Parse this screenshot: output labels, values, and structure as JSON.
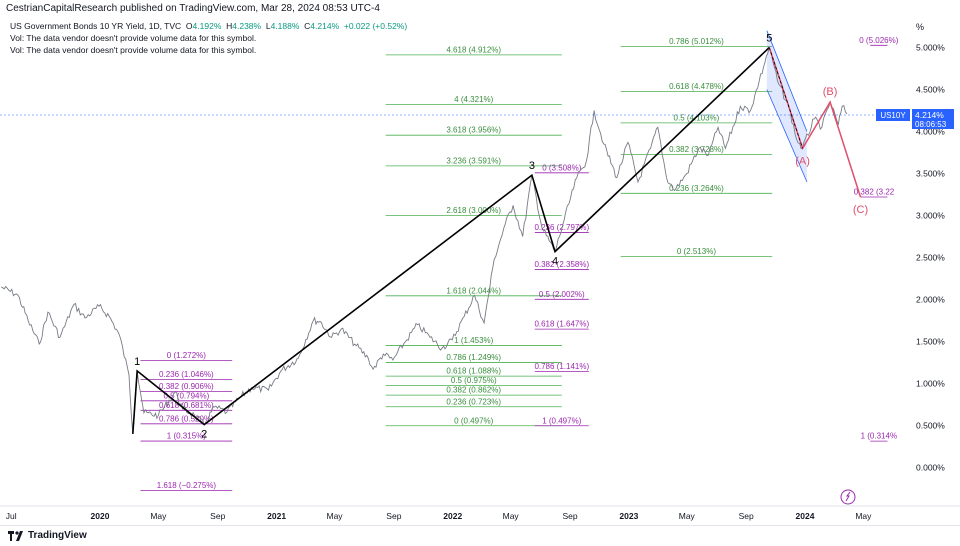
{
  "header": {
    "published": "CestrianCapitalResearch published on TradingView.com, Mar 28, 2024 08:53 UTC-4"
  },
  "legend": {
    "symbol": "US Government Bonds 10 YR Yield, 1D, TVC",
    "o_label": "O",
    "o_value": "4.192%",
    "h_label": "H",
    "h_value": "4.238%",
    "l_label": "L",
    "l_value": "4.188%",
    "c_label": "C",
    "c_value": "4.214%",
    "change": "+0.022 (+0.52%)",
    "vol1": "Vol: The data vendor doesn't provide volume data for this symbol.",
    "vol2": "Vol: The data vendor doesn't provide volume data for this symbol."
  },
  "price_tag": {
    "symbol": "US10Y",
    "price": "4.214%",
    "countdown": "08:06:53"
  },
  "scale_button": "%",
  "footer": {
    "brand": "TradingView"
  },
  "colors": {
    "price_line": "#787b86",
    "fib_green": "#4caf50",
    "fib_text_green": "#388e3c",
    "fib_text_purple": "#9c27b0",
    "wave_black": "#000000",
    "abc_red": "#e04e6b",
    "channel_blue": "#2962ff",
    "tag_blue": "#2962ff"
  },
  "chart_data": {
    "type": "line",
    "title": "US Government Bonds 10 YR Yield, 1D, TVC",
    "y_axis_ticks": [
      "5.000%",
      "4.500%",
      "4.000%",
      "3.500%",
      "3.000%",
      "2.500%",
      "2.000%",
      "1.500%",
      "1.000%",
      "0.500%",
      "0.000%"
    ],
    "ylim": [
      -0.5,
      5.4
    ],
    "x_axis_ticks": [
      "Jul",
      "2020",
      "May",
      "Sep",
      "2021",
      "May",
      "Sep",
      "2022",
      "May",
      "Sep",
      "2023",
      "May",
      "Sep",
      "2024",
      "May"
    ],
    "x_tick_dates": [
      "2019-07-01",
      "2020-01-01",
      "2020-05-01",
      "2020-09-01",
      "2021-01-01",
      "2021-05-01",
      "2021-09-01",
      "2022-01-01",
      "2022-05-01",
      "2022-09-01",
      "2023-01-01",
      "2023-05-01",
      "2023-09-01",
      "2024-01-01",
      "2024-05-01"
    ],
    "series": [
      {
        "values_points": [
          [
            "2019-06-10",
            2.15
          ],
          [
            "2019-07-15",
            2.05
          ],
          [
            "2019-08-05",
            1.75
          ],
          [
            "2019-08-28",
            1.47
          ],
          [
            "2019-09-15",
            1.85
          ],
          [
            "2019-10-10",
            1.55
          ],
          [
            "2019-11-08",
            1.94
          ],
          [
            "2019-12-01",
            1.78
          ],
          [
            "2019-12-30",
            1.92
          ],
          [
            "2020-01-20",
            1.8
          ],
          [
            "2020-02-10",
            1.58
          ],
          [
            "2020-03-01",
            1.1
          ],
          [
            "2020-03-09",
            0.4
          ],
          [
            "2020-03-18",
            1.15
          ],
          [
            "2020-04-01",
            0.65
          ],
          [
            "2020-05-01",
            0.62
          ],
          [
            "2020-06-05",
            0.9
          ],
          [
            "2020-06-20",
            0.7
          ],
          [
            "2020-07-15",
            0.62
          ],
          [
            "2020-08-04",
            0.51
          ],
          [
            "2020-08-25",
            0.72
          ],
          [
            "2020-09-20",
            0.66
          ],
          [
            "2020-10-20",
            0.85
          ],
          [
            "2020-11-10",
            0.95
          ],
          [
            "2020-12-15",
            0.92
          ],
          [
            "2021-01-10",
            1.15
          ],
          [
            "2021-02-15",
            1.3
          ],
          [
            "2021-03-18",
            1.75
          ],
          [
            "2021-04-01",
            1.74
          ],
          [
            "2021-04-25",
            1.55
          ],
          [
            "2021-05-15",
            1.65
          ],
          [
            "2021-06-15",
            1.45
          ],
          [
            "2021-07-10",
            1.3
          ],
          [
            "2021-07-20",
            1.17
          ],
          [
            "2021-08-10",
            1.35
          ],
          [
            "2021-08-30",
            1.28
          ],
          [
            "2021-09-25",
            1.5
          ],
          [
            "2021-10-20",
            1.7
          ],
          [
            "2021-11-15",
            1.55
          ],
          [
            "2021-12-10",
            1.42
          ],
          [
            "2021-12-31",
            1.52
          ],
          [
            "2022-01-25",
            1.8
          ],
          [
            "2022-02-15",
            2.05
          ],
          [
            "2022-03-07",
            1.72
          ],
          [
            "2022-03-28",
            2.48
          ],
          [
            "2022-04-20",
            2.9
          ],
          [
            "2022-05-06",
            3.12
          ],
          [
            "2022-05-26",
            2.75
          ],
          [
            "2022-06-14",
            3.48
          ],
          [
            "2022-07-05",
            2.85
          ],
          [
            "2022-08-01",
            2.57
          ],
          [
            "2022-08-20",
            2.95
          ],
          [
            "2022-09-15",
            3.45
          ],
          [
            "2022-10-05",
            3.65
          ],
          [
            "2022-10-21",
            4.25
          ],
          [
            "2022-11-10",
            3.85
          ],
          [
            "2022-12-07",
            3.45
          ],
          [
            "2022-12-30",
            3.87
          ],
          [
            "2023-01-20",
            3.4
          ],
          [
            "2023-02-15",
            3.8
          ],
          [
            "2023-03-02",
            4.05
          ],
          [
            "2023-03-20",
            3.45
          ],
          [
            "2023-04-06",
            3.3
          ],
          [
            "2023-05-01",
            3.5
          ],
          [
            "2023-05-26",
            3.8
          ],
          [
            "2023-06-15",
            3.72
          ],
          [
            "2023-07-05",
            4.05
          ],
          [
            "2023-07-20",
            3.8
          ],
          [
            "2023-08-20",
            4.3
          ],
          [
            "2023-09-10",
            4.25
          ],
          [
            "2023-09-28",
            4.6
          ],
          [
            "2023-10-19",
            5.0
          ],
          [
            "2023-11-05",
            4.6
          ],
          [
            "2023-11-28",
            4.3
          ],
          [
            "2023-12-15",
            3.9
          ],
          [
            "2023-12-27",
            3.8
          ],
          [
            "2024-01-20",
            4.15
          ],
          [
            "2024-02-05",
            4.05
          ],
          [
            "2024-02-22",
            4.35
          ],
          [
            "2024-03-10",
            4.08
          ],
          [
            "2024-03-18",
            4.3
          ],
          [
            "2024-03-28",
            4.21
          ]
        ]
      }
    ],
    "elliott_waves": [
      {
        "label": "1",
        "date": "2020-03-18",
        "value": 1.15
      },
      {
        "label": "2",
        "date": "2020-08-04",
        "value": 0.51
      },
      {
        "label": "3",
        "date": "2022-06-14",
        "value": 3.48
      },
      {
        "label": "4",
        "date": "2022-08-01",
        "value": 2.57
      },
      {
        "label": "5",
        "date": "2023-10-19",
        "value": 5.0
      }
    ],
    "wave_start": {
      "date": "2020-03-09",
      "value": 0.4
    },
    "corrective_waves": [
      {
        "label": "(A)",
        "date": "2023-12-27",
        "value": 3.8
      },
      {
        "label": "(B)",
        "date": "2024-02-22",
        "value": 4.35
      },
      {
        "label": "(C)",
        "date": "2024-04-25",
        "value": 3.22
      }
    ],
    "fib_levels": [
      {
        "text": "0 (1.272%)",
        "value": 1.272,
        "from": "2020-03-25",
        "to": "2020-10-01",
        "color": "purple"
      },
      {
        "text": "0.236 (1.046%)",
        "value": 1.046,
        "from": "2020-03-25",
        "to": "2020-10-01",
        "color": "purple"
      },
      {
        "text": "0.382 (0.906%)",
        "value": 0.906,
        "from": "2020-03-25",
        "to": "2020-10-01",
        "color": "purple"
      },
      {
        "text": "0.5 (0.794%)",
        "value": 0.794,
        "from": "2020-03-25",
        "to": "2020-10-01",
        "color": "purple"
      },
      {
        "text": "0.618 (0.681%)",
        "value": 0.681,
        "from": "2020-03-25",
        "to": "2020-10-01",
        "color": "purple"
      },
      {
        "text": "0.786 (0.520%)",
        "value": 0.52,
        "from": "2020-03-25",
        "to": "2020-10-01",
        "color": "purple"
      },
      {
        "text": "1 (0.315%)",
        "value": 0.315,
        "from": "2020-03-25",
        "to": "2020-10-01",
        "color": "purple"
      },
      {
        "text": "1.618 (−0.275%)",
        "value": -0.275,
        "from": "2020-03-25",
        "to": "2020-10-01",
        "color": "purple"
      },
      {
        "text": "4.618 (4.912%)",
        "value": 4.912,
        "from": "2021-08-15",
        "to": "2022-08-15",
        "color": "green"
      },
      {
        "text": "4 (4.321%)",
        "value": 4.321,
        "from": "2021-08-15",
        "to": "2022-08-15",
        "color": "green"
      },
      {
        "text": "3.618 (3.956%)",
        "value": 3.956,
        "from": "2021-08-15",
        "to": "2022-08-15",
        "color": "green"
      },
      {
        "text": "3.236 (3.591%)",
        "value": 3.591,
        "from": "2021-08-15",
        "to": "2022-08-15",
        "color": "green"
      },
      {
        "text": "2.618 (3.000%)",
        "value": 3.0,
        "from": "2021-08-15",
        "to": "2022-08-15",
        "color": "green"
      },
      {
        "text": "1.618 (2.044%)",
        "value": 2.044,
        "from": "2021-08-15",
        "to": "2022-08-15",
        "color": "green"
      },
      {
        "text": "1 (1.453%)",
        "value": 1.453,
        "from": "2021-08-15",
        "to": "2022-08-15",
        "color": "green"
      },
      {
        "text": "0.786 (1.249%)",
        "value": 1.249,
        "from": "2021-08-15",
        "to": "2022-08-15",
        "color": "green"
      },
      {
        "text": "0.618 (1.088%)",
        "value": 1.088,
        "from": "2021-08-15",
        "to": "2022-08-15",
        "color": "green"
      },
      {
        "text": "0.5 (0.975%)",
        "value": 0.975,
        "from": "2021-08-15",
        "to": "2022-08-15",
        "color": "green"
      },
      {
        "text": "0.382 (0.862%)",
        "value": 0.862,
        "from": "2021-08-15",
        "to": "2022-08-15",
        "color": "green"
      },
      {
        "text": "0.236 (0.723%)",
        "value": 0.723,
        "from": "2021-08-15",
        "to": "2022-08-15",
        "color": "green"
      },
      {
        "text": "0 (0.497%)",
        "value": 0.497,
        "from": "2021-08-15",
        "to": "2022-08-15",
        "color": "green"
      },
      {
        "text": "0 (3.508%)",
        "value": 3.508,
        "from": "2022-06-20",
        "to": "2022-10-10",
        "color": "purple"
      },
      {
        "text": "0.236 (2.797%)",
        "value": 2.797,
        "from": "2022-06-20",
        "to": "2022-10-10",
        "color": "purple"
      },
      {
        "text": "0.382 (2.358%)",
        "value": 2.358,
        "from": "2022-06-20",
        "to": "2022-10-10",
        "color": "purple"
      },
      {
        "text": "0.5 (2.002%)",
        "value": 2.002,
        "from": "2022-06-20",
        "to": "2022-10-10",
        "color": "purple"
      },
      {
        "text": "0.618 (1.647%)",
        "value": 1.647,
        "from": "2022-06-20",
        "to": "2022-10-10",
        "color": "purple"
      },
      {
        "text": "0.786 (1.141%)",
        "value": 1.141,
        "from": "2022-06-20",
        "to": "2022-10-10",
        "color": "purple"
      },
      {
        "text": "1 (0.497%)",
        "value": 0.497,
        "from": "2022-06-20",
        "to": "2022-10-10",
        "color": "purple"
      },
      {
        "text": "0.786 (5.012%)",
        "value": 5.012,
        "from": "2022-12-15",
        "to": "2023-10-25",
        "color": "green"
      },
      {
        "text": "0.618 (4.478%)",
        "value": 4.478,
        "from": "2022-12-15",
        "to": "2023-10-25",
        "color": "green"
      },
      {
        "text": "0.5 (4.103%)",
        "value": 4.103,
        "from": "2022-12-15",
        "to": "2023-10-25",
        "color": "green"
      },
      {
        "text": "0.382 (3.728%)",
        "value": 3.728,
        "from": "2022-12-15",
        "to": "2023-10-25",
        "color": "green"
      },
      {
        "text": "0.236 (3.264%)",
        "value": 3.264,
        "from": "2022-12-15",
        "to": "2023-10-25",
        "color": "green"
      },
      {
        "text": "0 (2.513%)",
        "value": 2.513,
        "from": "2022-12-15",
        "to": "2023-10-25",
        "color": "green"
      },
      {
        "text": "0 (5.026%)",
        "value": 5.026,
        "from": "2024-05-15",
        "to": "2024-06-20",
        "color": "purple"
      },
      {
        "text": "0.382 (3.22",
        "value": 3.22,
        "from": "2024-04-25",
        "to": "2024-06-20",
        "color": "purple"
      },
      {
        "text": "1 (0.314%",
        "value": 0.314,
        "from": "2024-05-15",
        "to": "2024-06-20",
        "color": "purple"
      }
    ],
    "channel": {
      "upper": [
        [
          "2023-10-14",
          5.2
        ],
        [
          "2024-01-05",
          4.0
        ]
      ],
      "lower": [
        [
          "2023-10-14",
          4.5
        ],
        [
          "2024-01-05",
          3.4
        ]
      ]
    }
  }
}
